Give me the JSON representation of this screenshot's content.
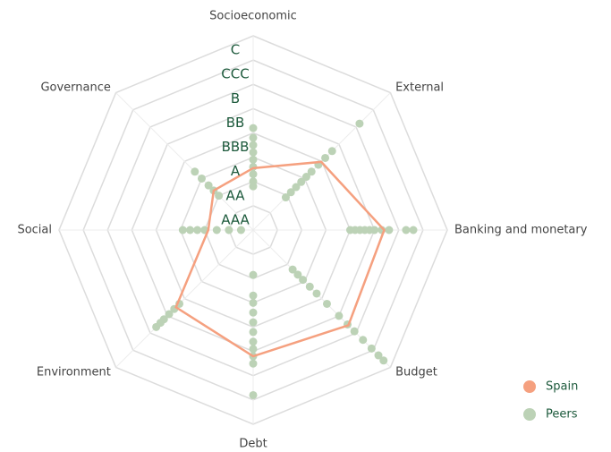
{
  "chart_data": {
    "type": "radar",
    "categories": [
      "Socioeconomic",
      "External",
      "Banking and monetary",
      "Budget",
      "Debt",
      "Environment",
      "Social",
      "Governance"
    ],
    "rlim": [
      0,
      8
    ],
    "rticks": [
      {
        "value": 1,
        "label": "AAA"
      },
      {
        "value": 2,
        "label": "AA"
      },
      {
        "value": 3,
        "label": "A"
      },
      {
        "value": 4,
        "label": "BBB"
      },
      {
        "value": 5,
        "label": "BB"
      },
      {
        "value": 6,
        "label": "B"
      },
      {
        "value": 7,
        "label": "CCC"
      },
      {
        "value": 8,
        "label": "C"
      }
    ],
    "grid": true,
    "legend": "lower right",
    "series": [
      {
        "name": "Spain",
        "color": "#f5a07f",
        "values": [
          2.55,
          3.97,
          5.4,
          5.55,
          5.2,
          4.5,
          1.85,
          2.3
        ]
      },
      {
        "name": "Peers",
        "color": "#bcd2b6",
        "values": [
          [
            1.8,
            2.0,
            2.3,
            2.6,
            2.9,
            3.2,
            3.5,
            3.8,
            4.2
          ],
          [
            1.9,
            2.2,
            2.5,
            2.8,
            3.1,
            3.4,
            3.8,
            4.2,
            4.6,
            6.2
          ],
          [
            4.0,
            4.2,
            4.4,
            4.6,
            4.8,
            5.0,
            5.3,
            5.6,
            6.3,
            6.6
          ],
          [
            2.3,
            2.6,
            2.9,
            3.3,
            3.7,
            4.3,
            5.0,
            5.5,
            5.9,
            6.4,
            6.9,
            7.3,
            7.6
          ],
          [
            1.85,
            2.7,
            3.0,
            3.4,
            3.8,
            4.2,
            4.6,
            4.9,
            5.2,
            5.5,
            6.8
          ],
          [
            4.3,
            4.6,
            4.9,
            5.2,
            5.4,
            5.65
          ],
          [
            0.5,
            1.0,
            1.5,
            2.0,
            2.3,
            2.6,
            2.9
          ],
          [
            2.0,
            2.3,
            2.6,
            3.0,
            3.4
          ]
        ]
      }
    ]
  }
}
